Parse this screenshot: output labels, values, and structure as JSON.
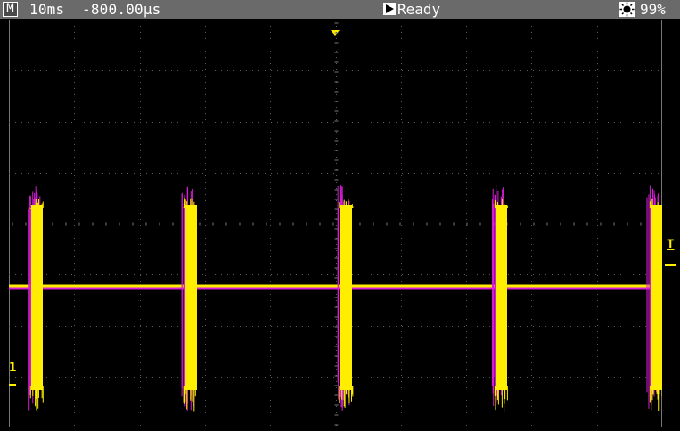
{
  "topbar": {
    "mode": "M",
    "timebase": "10ms  -800.00µs",
    "status": "Ready",
    "brightness": "99%"
  },
  "screen": {
    "channel_label": "1",
    "trigger_label": "T"
  },
  "colors": {
    "ch1": "#ffee00",
    "ch2": "#d81cd8",
    "grid": "#5a5a5a",
    "topbar_bg": "#6a6a6a"
  },
  "icons": [
    "run-icon",
    "brightness-icon"
  ]
}
